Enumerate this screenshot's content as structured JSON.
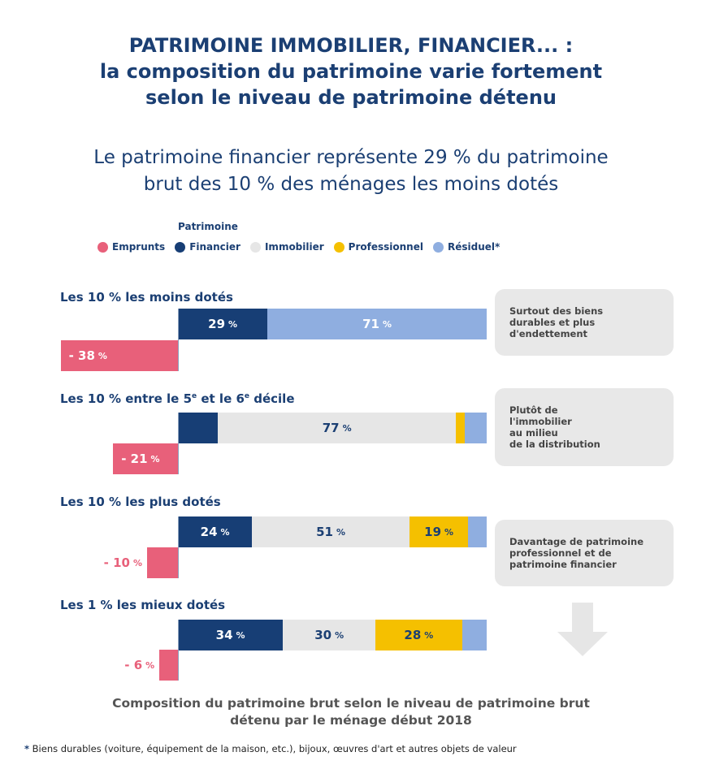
{
  "title": {
    "line1": "PATRIMOINE IMMOBILIER, FINANCIER... :",
    "line2": "la composition du patrimoine varie fortement",
    "line3": "selon le niveau de patrimoine détenu"
  },
  "subtitle": {
    "line1": "Le patrimoine financier représente 29 % du patrimoine",
    "line2": "brut des 10 % des ménages les moins dotés"
  },
  "legend": {
    "title": "Patrimoine",
    "items": [
      {
        "label": "Emprunts",
        "color": "#e8607a"
      },
      {
        "label": "Financier",
        "color": "#173e75"
      },
      {
        "label": "Immobilier",
        "color": "#e6e6e6"
      },
      {
        "label": "Professionnel",
        "color": "#f5c000"
      },
      {
        "label": "Résiduel*",
        "color": "#8faee0"
      }
    ]
  },
  "colors": {
    "emprunts": "#e8607a",
    "financier": "#173e75",
    "immobilier": "#e6e6e6",
    "professionnel": "#f5c000",
    "residuel": "#8faee0"
  },
  "chart_data": {
    "type": "bar",
    "orientation": "horizontal",
    "stacked": true,
    "categories": [
      "Les 10 % les moins dotés",
      "Les 10 % entre le 5e et le 6e décile",
      "Les 10 % les plus dotés",
      "Les 1 % les mieux dotés"
    ],
    "series": [
      {
        "name": "Financier",
        "values": [
          29,
          13,
          24,
          34
        ]
      },
      {
        "name": "Immobilier",
        "values": [
          0,
          77,
          51,
          30
        ]
      },
      {
        "name": "Professionnel",
        "values": [
          0,
          3,
          19,
          28
        ]
      },
      {
        "name": "Résiduel*",
        "values": [
          71,
          7,
          6,
          8
        ]
      },
      {
        "name": "Emprunts",
        "values": [
          -38,
          -21,
          -10,
          -6
        ]
      }
    ],
    "value_labels": [
      {
        "Financier": "29",
        "Résiduel*": "71",
        "Emprunts": "- 38"
      },
      {
        "Immobilier": "77",
        "Emprunts": "- 21"
      },
      {
        "Financier": "24",
        "Immobilier": "51",
        "Professionnel": "19",
        "Emprunts": "- 10"
      },
      {
        "Financier": "34",
        "Immobilier": "30",
        "Professionnel": "28",
        "Emprunts": "- 6"
      }
    ],
    "unit": "%",
    "xlim": [
      -38,
      100
    ],
    "grid": false,
    "legend": "top"
  },
  "rows": [
    {
      "label_main": "Les 10 % les moins dotés",
      "label_pre": "",
      "label_sup1": "",
      "label_mid": "",
      "label_sup2": "",
      "label_post": ""
    },
    {
      "label_main": "",
      "label_pre": "Les 10 % entre le 5",
      "label_sup1": "e",
      "label_mid": " et le 6",
      "label_sup2": "e",
      "label_post": " décile"
    },
    {
      "label_main": "Les 10 % les plus dotés",
      "label_pre": "",
      "label_sup1": "",
      "label_mid": "",
      "label_sup2": "",
      "label_post": ""
    },
    {
      "label_main": "Les 1 % les mieux dotés",
      "label_pre": "",
      "label_sup1": "",
      "label_mid": "",
      "label_sup2": "",
      "label_post": ""
    }
  ],
  "callouts": [
    "Surtout des biens\ndurables et plus\nd'endettement",
    "Plutôt de\nl'immobilier\nau milieu\nde la distribution",
    "Davantage de patrimoine\nprofessionnel et de\npatrimoine financier"
  ],
  "caption": {
    "line1": "Composition du patrimoine brut selon le niveau de patrimoine brut",
    "line2": "détenu par le ménage début 2018"
  },
  "footnote": {
    "star": "*",
    "text": " Biens durables (voiture, équipement de la maison, etc.), bijoux, œuvres d'art et autres objets de valeur"
  }
}
